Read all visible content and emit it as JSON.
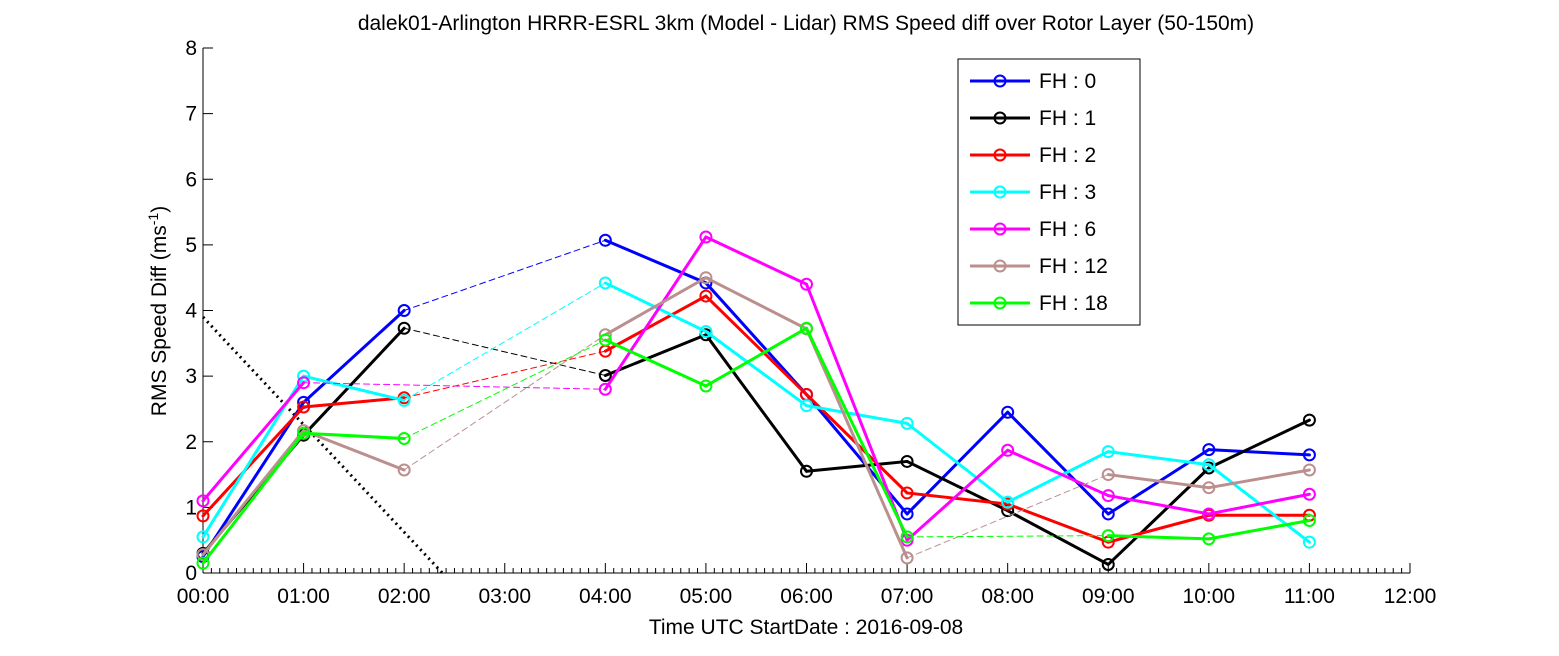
{
  "chart_data": {
    "type": "line",
    "title": "dalek01-Arlington HRRR-ESRL 3km (Model - Lidar) RMS Speed diff over Rotor Layer (50-150m)",
    "xlabel": "Time UTC    StartDate : 2016-09-08",
    "ylabel": {
      "base": "RMS Speed Diff (ms",
      "sup": "-1",
      "end": ")"
    },
    "xlim": [
      0,
      12
    ],
    "ylim": [
      0,
      8
    ],
    "x_ticks": [
      0,
      1,
      2,
      3,
      4,
      5,
      6,
      7,
      8,
      9,
      10,
      11,
      12
    ],
    "x_tick_labels": [
      "00:00",
      "01:00",
      "02:00",
      "03:00",
      "04:00",
      "05:00",
      "06:00",
      "07:00",
      "08:00",
      "09:00",
      "10:00",
      "11:00",
      "12:00"
    ],
    "y_ticks": [
      0,
      1,
      2,
      3,
      4,
      5,
      6,
      7,
      8
    ],
    "y_tick_labels": [
      "0",
      "1",
      "2",
      "3",
      "4",
      "5",
      "6",
      "7",
      "8"
    ],
    "legend_position": "top-right",
    "grid": false,
    "series": [
      {
        "name": "FH : 0",
        "color": "#0000ff",
        "x": [
          0,
          1,
          2,
          4,
          5,
          6,
          7,
          8,
          9,
          10,
          11
        ],
        "y": [
          0.25,
          2.6,
          4.0,
          5.07,
          4.42,
          2.72,
          0.9,
          2.45,
          0.9,
          1.88,
          1.8
        ]
      },
      {
        "name": "FH : 1",
        "color": "#000000",
        "x": [
          0,
          1,
          2,
          4,
          5,
          6,
          7,
          8,
          9,
          10,
          11
        ],
        "y": [
          0.3,
          2.1,
          3.73,
          3.01,
          3.63,
          1.55,
          1.7,
          0.95,
          0.13,
          1.6,
          2.33
        ]
      },
      {
        "name": "FH : 2",
        "color": "#ff0000",
        "x": [
          0,
          1,
          2,
          4,
          5,
          6,
          7,
          8,
          9,
          10,
          11
        ],
        "y": [
          0.87,
          2.53,
          2.67,
          3.38,
          4.22,
          2.72,
          1.22,
          1.05,
          0.47,
          0.88,
          0.88
        ]
      },
      {
        "name": "FH : 3",
        "color": "#00ffff",
        "x": [
          0,
          1,
          2,
          4,
          5,
          6,
          7,
          8,
          9,
          10,
          11
        ],
        "y": [
          0.55,
          3.0,
          2.63,
          4.42,
          3.68,
          2.55,
          2.28,
          1.08,
          1.85,
          1.65,
          0.47
        ]
      },
      {
        "name": "FH : 6",
        "color": "#ff00ff",
        "x": [
          0,
          1,
          4,
          5,
          6,
          7,
          8,
          9,
          10,
          11
        ],
        "y": [
          1.1,
          2.9,
          2.8,
          5.12,
          4.4,
          0.5,
          1.87,
          1.18,
          0.9,
          1.2
        ]
      },
      {
        "name": "FH : 12",
        "color": "#bc8f8f",
        "x": [
          0,
          1,
          2,
          4,
          5,
          6,
          7,
          9,
          10,
          11
        ],
        "y": [
          0.28,
          2.17,
          1.57,
          3.63,
          4.5,
          3.72,
          0.23,
          1.5,
          1.3,
          1.57
        ]
      },
      {
        "name": "FH : 18",
        "color": "#00ff00",
        "x": [
          0,
          1,
          2,
          4,
          5,
          6,
          7,
          9,
          10,
          11
        ],
        "y": [
          0.15,
          2.13,
          2.05,
          3.55,
          2.85,
          3.73,
          0.55,
          0.57,
          0.52,
          0.8
        ]
      }
    ],
    "reference_line": {
      "style": "dotted",
      "color": "#000000",
      "x": [
        0,
        2.38
      ],
      "y": [
        3.9,
        0
      ]
    }
  }
}
